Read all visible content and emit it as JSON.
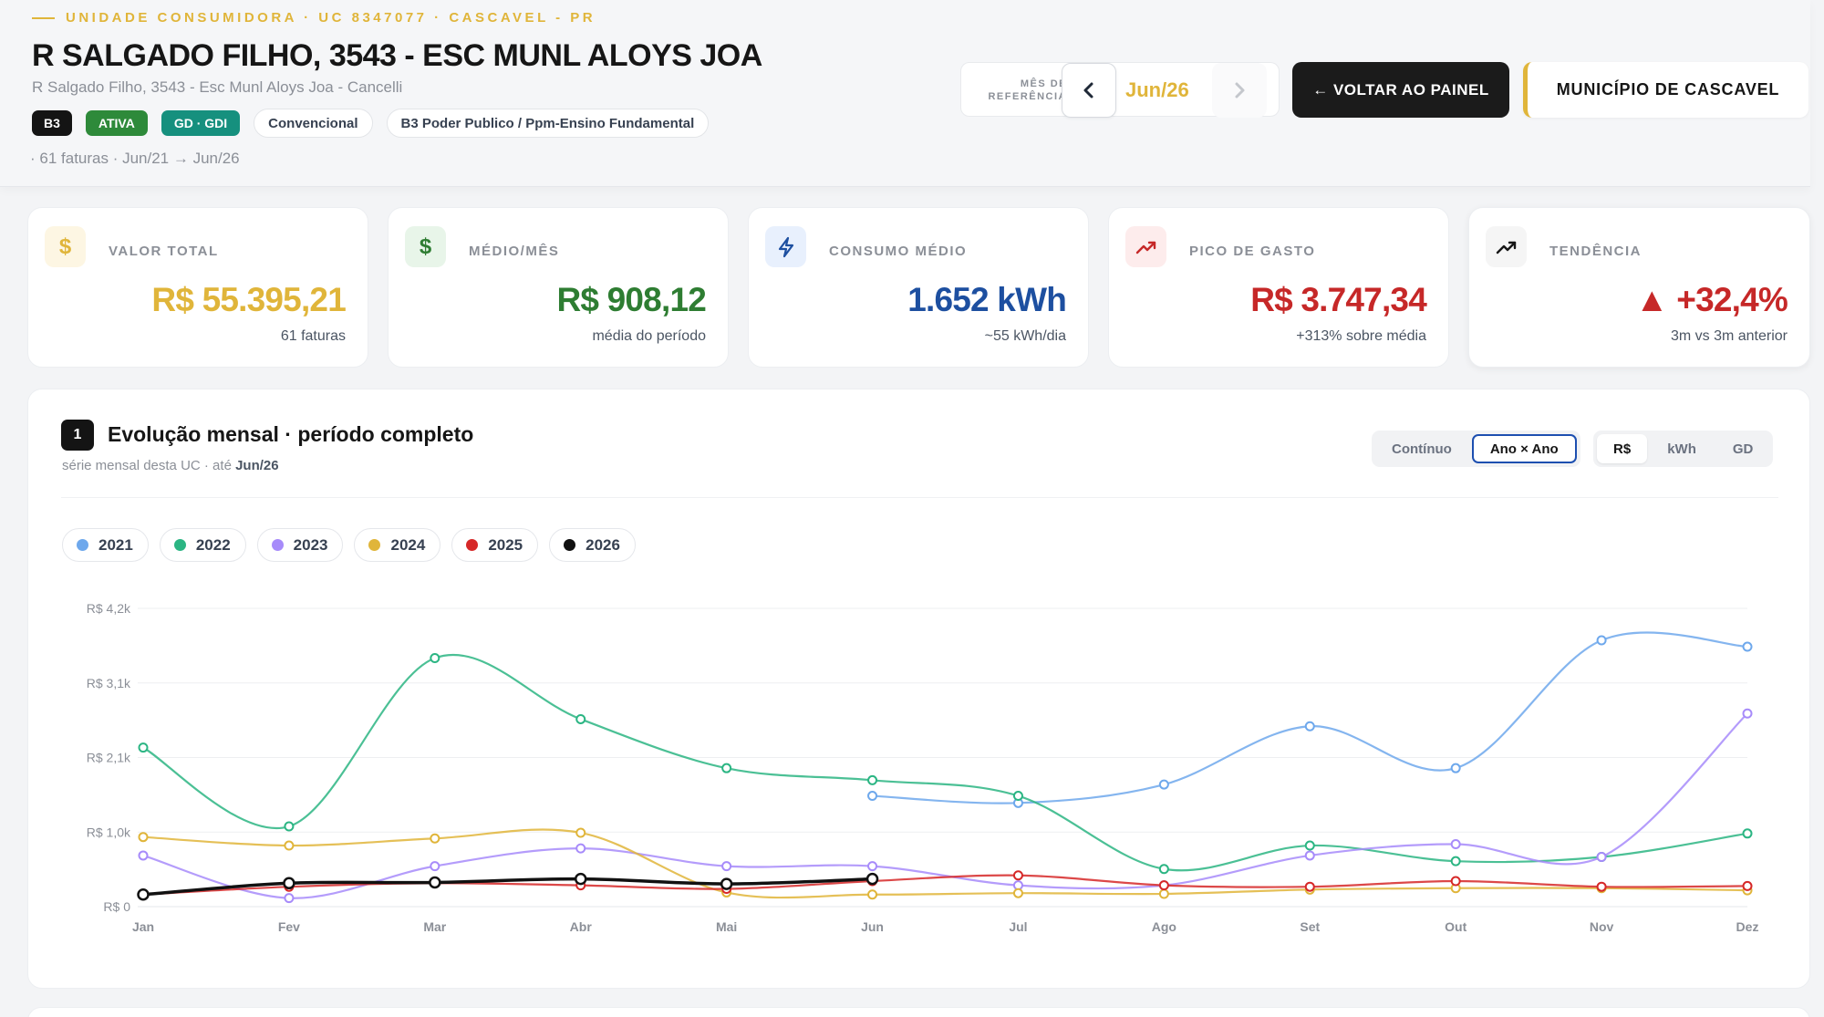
{
  "header": {
    "eyebrow": "UNIDADE CONSUMIDORA · UC 8347077 · CASCAVEL - PR",
    "title": "R SALGADO FILHO, 3543 - ESC MUNL ALOYS JOA",
    "subtitle": "R Salgado Filho, 3543 - Esc Munl Aloys Joa - Cancelli",
    "badges": [
      "B3",
      "ATIVA",
      "GD · GDI",
      "Convencional",
      "B3 Poder Publico / Ppm-Ensino Fundamental"
    ],
    "meta": "· 61 faturas · Jun/21 → Jun/26",
    "ref_label": "MÊS DE REFERÊNCIA",
    "ref_month": "Jun/26",
    "back_button": "← VOLTAR AO PAINEL",
    "municipio_button": "MUNICÍPIO DE CASCAVEL"
  },
  "kpis": [
    {
      "icon": "dollar-icon",
      "symbol": "$",
      "label": "VALOR TOTAL",
      "value": "R$ 55.395,21",
      "sub": "61 faturas",
      "color": "#e0b53a",
      "icon_bg": "#fdf6e3"
    },
    {
      "icon": "dollar-icon",
      "symbol": "$",
      "label": "MÉDIO/MÊS",
      "value": "R$ 908,12",
      "sub": "média do período",
      "color": "#2e7d32",
      "icon_bg": "#e8f5e9"
    },
    {
      "icon": "lightning-icon",
      "symbol": "⚡",
      "label": "CONSUMO MÉDIO",
      "value": "1.652 kWh",
      "sub": "~55 kWh/dia",
      "color": "#1d4fa0",
      "icon_bg": "#e8f0fd"
    },
    {
      "icon": "trending-up-icon",
      "symbol": "↗",
      "label": "PICO DE GASTO",
      "value": "R$ 3.747,34",
      "sub": "+313% sobre média",
      "color": "#c62828",
      "icon_bg": "#fdecec"
    },
    {
      "icon": "trend-icon",
      "symbol": "↗",
      "label": "TENDÊNCIA",
      "value": "▲ +32,4%",
      "sub": "3m vs 3m anterior",
      "color": "#c62828",
      "icon_bg": "#f5f5f5"
    }
  ],
  "chart_section": {
    "number": "1",
    "title": "Evolução mensal · período completo",
    "subtitle_prefix": "série mensal desta UC · até ",
    "subtitle_month": "Jun/26",
    "view_toggle": [
      "Contínuo",
      "Ano × Ano"
    ],
    "view_active": "Ano × Ano",
    "metric_toggle": [
      "R$",
      "kWh",
      "GD"
    ],
    "metric_active": "R$"
  },
  "chart_data": {
    "type": "line",
    "categories": [
      "Jan",
      "Fev",
      "Mar",
      "Abr",
      "Mai",
      "Jun",
      "Jul",
      "Ago",
      "Set",
      "Out",
      "Nov",
      "Dez"
    ],
    "y_ticks": [
      "R$ 0",
      "R$ 1,0k",
      "R$ 2,1k",
      "R$ 3,1k",
      "R$ 4,2k"
    ],
    "ylim": [
      0,
      4200
    ],
    "series": [
      {
        "name": "2021",
        "color": "#6ea8ec",
        "values": [
          null,
          null,
          null,
          null,
          null,
          1560,
          1460,
          1720,
          2540,
          1950,
          3750,
          3660
        ]
      },
      {
        "name": "2022",
        "color": "#2bb583",
        "values": [
          2240,
          1130,
          3500,
          2640,
          1950,
          1780,
          1560,
          530,
          860,
          640,
          700,
          1030
        ]
      },
      {
        "name": "2023",
        "color": "#a78bfa",
        "values": [
          720,
          120,
          570,
          820,
          570,
          570,
          300,
          300,
          720,
          880,
          700,
          2720
        ]
      },
      {
        "name": "2024",
        "color": "#e0b53a",
        "values": [
          980,
          860,
          960,
          1040,
          200,
          170,
          190,
          180,
          240,
          260,
          260,
          230
        ]
      },
      {
        "name": "2025",
        "color": "#d62828",
        "values": [
          170,
          280,
          330,
          300,
          250,
          360,
          440,
          300,
          280,
          360,
          280,
          290
        ]
      },
      {
        "name": "2026",
        "color": "#111111",
        "values": [
          170,
          330,
          340,
          390,
          320,
          390,
          null,
          null,
          null,
          null,
          null,
          null
        ]
      }
    ]
  }
}
